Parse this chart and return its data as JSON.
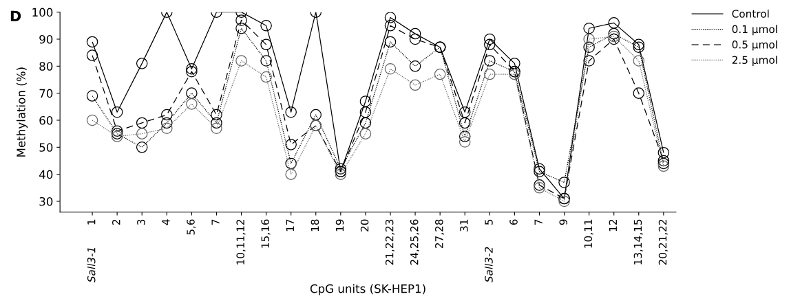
{
  "chart_data": {
    "type": "line",
    "xlabel": "CpG units (SK-HEP1)",
    "ylabel": "Methylation (%)",
    "categories": [
      "1",
      "2",
      "3",
      "4",
      "5,6",
      "7",
      "10,11,12",
      "15,16",
      "17",
      "18",
      "19",
      "20",
      "21,22,23",
      "24,25,26",
      "27,28",
      "31",
      "5",
      "6",
      "7",
      "9",
      "10,11",
      "12",
      "13,14,15",
      "20,21,22"
    ],
    "series": [
      {
        "name": "Control",
        "color": "#000000",
        "line_style": "solid",
        "values": [
          89,
          63,
          81,
          100,
          79,
          100,
          100,
          95,
          63,
          100,
          41,
          67,
          98,
          92,
          87,
          63,
          90,
          81,
          42,
          31,
          94,
          96,
          88,
          48
        ]
      },
      {
        "name": "0.1 μmol",
        "color": "#000000",
        "line_style": "dotted",
        "values": [
          69,
          55,
          50,
          59,
          70,
          59,
          94,
          82,
          44,
          62,
          42,
          59,
          89,
          80,
          87,
          54,
          82,
          78,
          41,
          37,
          87,
          92,
          87,
          44
        ]
      },
      {
        "name": "0.5 μmol",
        "color": "#000000",
        "line_style": "dashed",
        "values": [
          84,
          56,
          59,
          62,
          78,
          62,
          97,
          88,
          51,
          58,
          41,
          63,
          95,
          90,
          87,
          59,
          88,
          78,
          36,
          31,
          82,
          90,
          70,
          45
        ]
      },
      {
        "name": "2.5 μmol",
        "color": "#666666",
        "line_style": "dotted",
        "values": [
          60,
          54,
          55,
          57,
          66,
          57,
          82,
          76,
          40,
          58,
          40,
          55,
          79,
          73,
          77,
          52,
          77,
          77,
          35,
          30,
          90,
          91,
          82,
          43
        ]
      }
    ],
    "ylim": [
      26,
      100
    ],
    "yticks": [
      30,
      40,
      50,
      60,
      70,
      80,
      90,
      100
    ],
    "marker": "circle",
    "grid": false,
    "legend": "top right",
    "annotations": [
      "D",
      "Sall3-1",
      "Sall3-2"
    ]
  }
}
